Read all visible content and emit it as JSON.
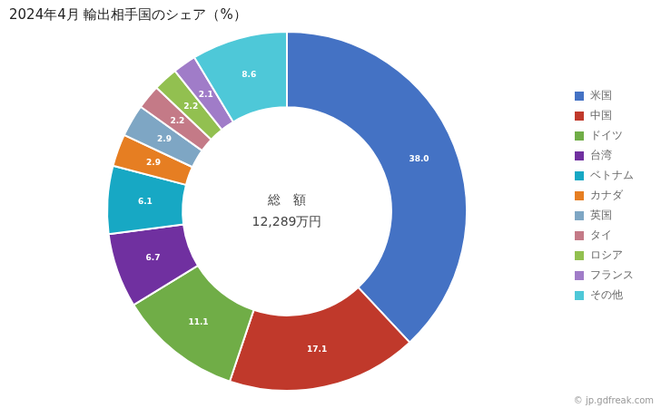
{
  "chart_data": {
    "type": "doughnut",
    "title": "2024年4月 輸出相手国のシェア（%）",
    "annotations": [
      "総　額",
      "12,289万円",
      "© jp.gdfreak.com"
    ],
    "categories": [
      "米国",
      "中国",
      "ドイツ",
      "台湾",
      "ベトナム",
      "カナダ",
      "英国",
      "タイ",
      "ロシア",
      "フランス",
      "その他"
    ],
    "values": [
      38.0,
      17.1,
      11.1,
      6.7,
      6.1,
      2.9,
      2.9,
      2.2,
      2.2,
      2.1,
      8.6
    ],
    "value_labels": [
      "38.0",
      "17.1",
      "11.1",
      "6.7",
      "6.1",
      "2.9",
      "2.9",
      "2.2",
      "2.2",
      "2.1",
      "8.6"
    ],
    "data_labels": true,
    "colors": [
      "#4472C4",
      "#C0392B",
      "#70AD47",
      "#7030A0",
      "#17A8C4",
      "#E67E22",
      "#7EA6C4",
      "#C47A87",
      "#92C050",
      "#A07CC8",
      "#4EC8D8"
    ],
    "legend": "right"
  }
}
